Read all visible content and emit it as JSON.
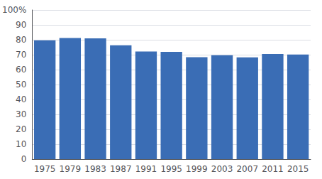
{
  "chart_data": {
    "type": "bar",
    "categories": [
      "1975",
      "1979",
      "1983",
      "1987",
      "1991",
      "1995",
      "1999",
      "2003",
      "2007",
      "2011",
      "2015"
    ],
    "values": [
      79.7,
      81.2,
      81.0,
      76.3,
      72.1,
      71.9,
      68.3,
      69.7,
      68.2,
      70.5,
      70.1
    ],
    "color": "#3A6DB5",
    "ylim": [
      0,
      100
    ],
    "yticks": [
      0,
      10,
      20,
      30,
      40,
      50,
      60,
      70,
      80,
      90,
      {
        "value": 100,
        "label": "100%"
      }
    ],
    "grid": true
  }
}
